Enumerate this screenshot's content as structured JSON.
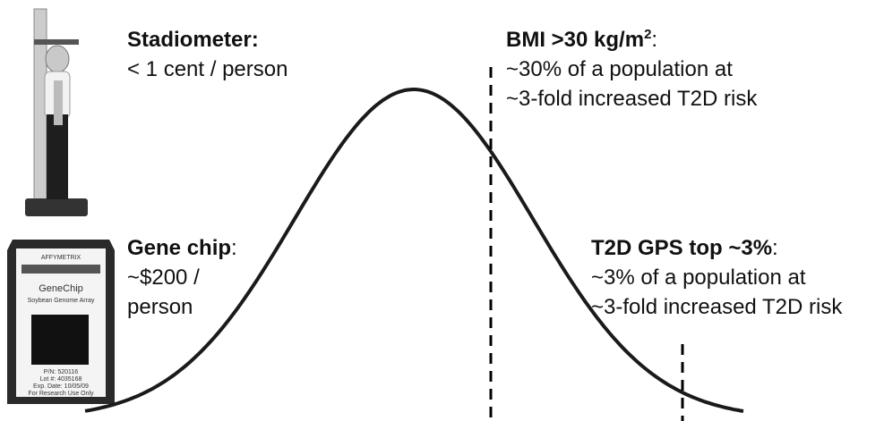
{
  "annotations": [
    {
      "label": "Stadiometer:",
      "lines": [
        "< 1 cent / person"
      ]
    },
    {
      "label": "BMI >30 kg/m",
      "sup": "2",
      "punct": ":",
      "lines": [
        "~30% of a population at",
        "~3-fold increased T2D risk"
      ]
    },
    {
      "label": "Gene chip",
      "punct": ":",
      "lines": [
        "~$200 /",
        "person"
      ]
    },
    {
      "label": "T2D GPS top ~3%",
      "punct": ":",
      "lines": [
        "~3% of a population at",
        "~3-fold increased T2D risk"
      ]
    }
  ],
  "chip": {
    "brand": "AFFYMETRIX",
    "name": "GeneChip",
    "array": "Soybean Genome Array",
    "details": [
      "P/N: 520116",
      "Lot #: 4035168",
      "Exp. Date: 10/05/09",
      "For Research Use Only"
    ]
  }
}
